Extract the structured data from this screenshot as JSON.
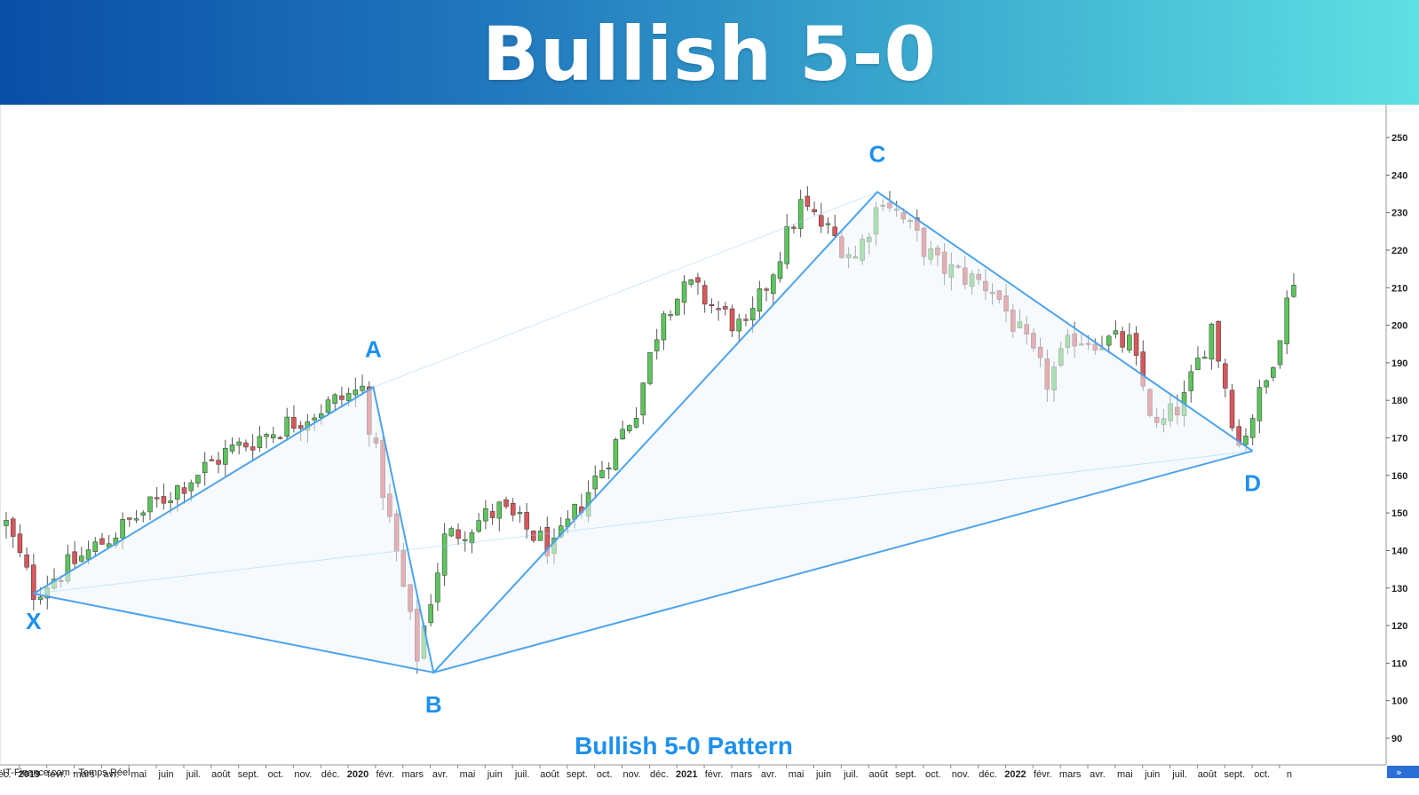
{
  "banner": {
    "title": "Bullish 5-0"
  },
  "source_label": "IT-Finance.com - Temps Réel",
  "colors": {
    "up": "#5cc55c",
    "down": "#d9575c",
    "pattern": "#4ba3ee",
    "label": "#1e90ee",
    "fill": "#eef6fb"
  },
  "chart_data": {
    "type": "candlestick",
    "title": "Bullish 5-0 Pattern",
    "y_ticks": [
      "90",
      "100",
      "110",
      "120",
      "130",
      "140",
      "150",
      "160",
      "170",
      "180",
      "190",
      "200",
      "210",
      "220",
      "230",
      "240",
      "250"
    ],
    "ylim": [
      87,
      253
    ],
    "x_ticks": [
      {
        "label": "déc.",
        "t": -0.3
      },
      {
        "label": "2019",
        "t": 0.7,
        "bold": true
      },
      {
        "label": "févr.",
        "t": 1.7
      },
      {
        "label": "mars",
        "t": 2.7
      },
      {
        "label": "avr.",
        "t": 3.7
      },
      {
        "label": "mai",
        "t": 4.7
      },
      {
        "label": "juin",
        "t": 5.7
      },
      {
        "label": "juil.",
        "t": 6.7
      },
      {
        "label": "août",
        "t": 7.7
      },
      {
        "label": "sept.",
        "t": 8.7
      },
      {
        "label": "oct.",
        "t": 9.7
      },
      {
        "label": "nov.",
        "t": 10.7
      },
      {
        "label": "déc.",
        "t": 11.7
      },
      {
        "label": "2020",
        "t": 12.7,
        "bold": true
      },
      {
        "label": "févr.",
        "t": 13.7
      },
      {
        "label": "mars",
        "t": 14.7
      },
      {
        "label": "avr.",
        "t": 15.7
      },
      {
        "label": "mai",
        "t": 16.7
      },
      {
        "label": "juin",
        "t": 17.7
      },
      {
        "label": "juil.",
        "t": 18.7
      },
      {
        "label": "août",
        "t": 19.7
      },
      {
        "label": "sept.",
        "t": 20.7
      },
      {
        "label": "oct.",
        "t": 21.7
      },
      {
        "label": "nov.",
        "t": 22.7
      },
      {
        "label": "déc.",
        "t": 23.7
      },
      {
        "label": "2021",
        "t": 24.7,
        "bold": true
      },
      {
        "label": "févr.",
        "t": 25.7
      },
      {
        "label": "mars",
        "t": 26.7
      },
      {
        "label": "avr.",
        "t": 27.7
      },
      {
        "label": "mai",
        "t": 28.7
      },
      {
        "label": "juin",
        "t": 29.7
      },
      {
        "label": "juil.",
        "t": 30.7
      },
      {
        "label": "août",
        "t": 31.7
      },
      {
        "label": "sept.",
        "t": 32.7
      },
      {
        "label": "oct.",
        "t": 33.7
      },
      {
        "label": "nov.",
        "t": 34.7
      },
      {
        "label": "déc.",
        "t": 35.7
      },
      {
        "label": "2022",
        "t": 36.7,
        "bold": true
      },
      {
        "label": "févr.",
        "t": 37.7
      },
      {
        "label": "mars",
        "t": 38.7
      },
      {
        "label": "avr.",
        "t": 39.7
      },
      {
        "label": "mai",
        "t": 40.7
      },
      {
        "label": "juin",
        "t": 41.7
      },
      {
        "label": "juil.",
        "t": 42.7
      },
      {
        "label": "août",
        "t": 43.7
      },
      {
        "label": "sept.",
        "t": 44.7
      },
      {
        "label": "oct.",
        "t": 45.7
      },
      {
        "label": "n",
        "t": 46.7
      }
    ],
    "anchors": [
      [
        0,
        147
      ],
      [
        1,
        129
      ],
      [
        8,
        166
      ],
      [
        13,
        183
      ],
      [
        15,
        112
      ],
      [
        16,
        143
      ],
      [
        18,
        151
      ],
      [
        20,
        140
      ],
      [
        23,
        178
      ],
      [
        24,
        205
      ],
      [
        25,
        210
      ],
      [
        27,
        198
      ],
      [
        29,
        232
      ],
      [
        31,
        218
      ],
      [
        32,
        235
      ],
      [
        34,
        216
      ],
      [
        36,
        210
      ],
      [
        38,
        185
      ],
      [
        39,
        197
      ],
      [
        41,
        195
      ],
      [
        42,
        172
      ],
      [
        43,
        180
      ],
      [
        44,
        200
      ],
      [
        45,
        168
      ],
      [
        46,
        185
      ],
      [
        47,
        213
      ]
    ],
    "pattern_points": [
      {
        "name": "X",
        "t": 1.0,
        "y": 128.5
      },
      {
        "name": "A",
        "t": 13.4,
        "y": 183.5
      },
      {
        "name": "B",
        "t": 15.6,
        "y": 107.5
      },
      {
        "name": "C",
        "t": 31.8,
        "y": 235.5
      },
      {
        "name": "D",
        "t": 45.5,
        "y": 166.5
      }
    ]
  }
}
